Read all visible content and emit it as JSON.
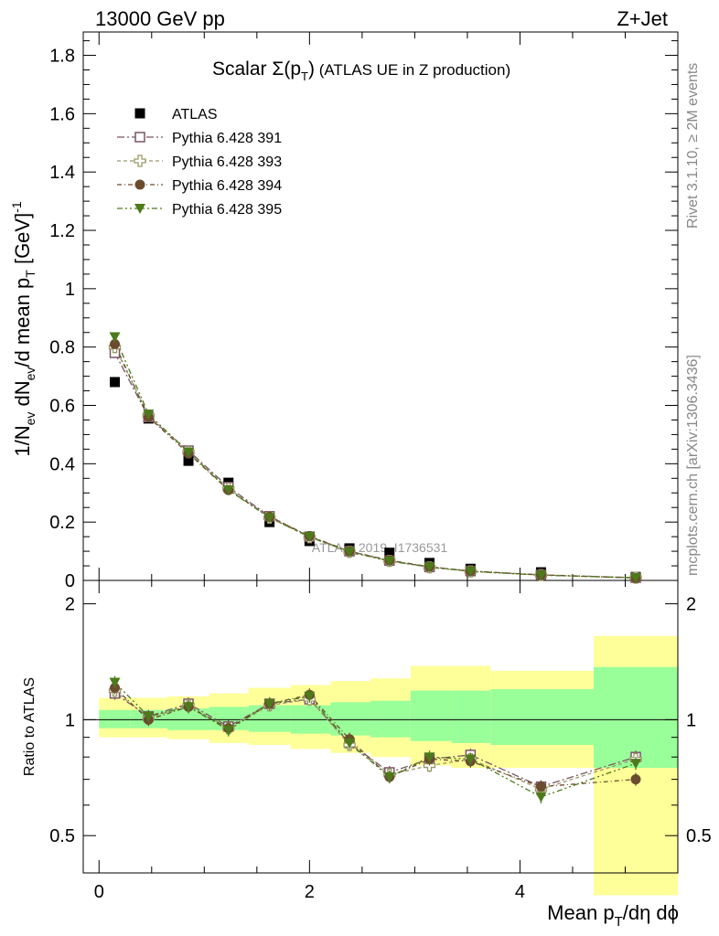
{
  "header": {
    "left": "13000 GeV pp",
    "right": "Z+Jet"
  },
  "side_labels": {
    "rivet": "Rivet 3.1.10, ≥ 2M events",
    "mcplots": "mcplots.cern.ch [arXiv:1306.3436]"
  },
  "watermark": "ATLAS_2019_I1736531",
  "chart_data": {
    "type": "scatter",
    "title": "Scalar Σ(p_T) (ATLAS UE in Z production)",
    "title_parts": {
      "main": "Scalar Σ(p",
      "sub": "T",
      "close": ")",
      "rest": " (ATLAS UE in Z production)"
    },
    "xlabel": "Mean p_T/dη dϕ",
    "xlabel_parts": {
      "pre": "Mean p",
      "sub": "T",
      "post": "/dη dϕ"
    },
    "ylabel": "1/N_ev dN_ev/d mean p_T [GeV]^-1",
    "ylabel_parts": {
      "a": "1/N",
      "a_sub": "ev",
      "b": " dN",
      "b_sub": "ev",
      "c": "/d mean p",
      "c_sub": "T",
      "d": " [GeV]",
      "d_sup": "-1"
    },
    "ratio_ylabel": "Ratio to ATLAS",
    "xlim": [
      -0.15,
      5.5
    ],
    "ylim": [
      0,
      1.88
    ],
    "ratio_ylim": [
      0.4,
      2.3
    ],
    "x_ticks": [
      "0",
      "2",
      "4"
    ],
    "y_ticks": [
      "0",
      "0.2",
      "0.4",
      "0.6",
      "0.8",
      "1",
      "1.2",
      "1.4",
      "1.6",
      "1.8"
    ],
    "ratio_y_ticks": [
      "0.5",
      "1",
      "2"
    ],
    "legend_position": "top-left",
    "x": [
      0.15,
      0.47,
      0.85,
      1.23,
      1.62,
      2.0,
      2.38,
      2.76,
      3.14,
      3.53,
      4.2,
      5.1
    ],
    "x_edges": [
      0.0,
      0.3,
      0.65,
      1.05,
      1.42,
      1.82,
      2.2,
      2.58,
      2.96,
      3.35,
      3.72,
      4.7,
      5.5
    ],
    "atlas": [
      0.68,
      0.555,
      0.41,
      0.335,
      0.2,
      0.135,
      0.11,
      0.095,
      0.06,
      0.04,
      0.028,
      0.012
    ],
    "band_inner": [
      [
        0.95,
        1.06
      ],
      [
        0.95,
        1.06
      ],
      [
        0.94,
        1.07
      ],
      [
        0.94,
        1.08
      ],
      [
        0.93,
        1.09
      ],
      [
        0.92,
        1.09
      ],
      [
        0.91,
        1.11
      ],
      [
        0.9,
        1.12
      ],
      [
        0.88,
        1.19
      ],
      [
        0.87,
        1.19
      ],
      [
        0.86,
        1.2
      ],
      [
        0.75,
        1.37
      ]
    ],
    "band_outer": [
      [
        0.9,
        1.14
      ],
      [
        0.9,
        1.14
      ],
      [
        0.89,
        1.15
      ],
      [
        0.87,
        1.17
      ],
      [
        0.86,
        1.21
      ],
      [
        0.84,
        1.23
      ],
      [
        0.82,
        1.26
      ],
      [
        0.8,
        1.28
      ],
      [
        0.76,
        1.38
      ],
      [
        0.75,
        1.38
      ],
      [
        0.75,
        1.34
      ],
      [
        0.35,
        1.65
      ]
    ],
    "series": [
      {
        "name": "Pythia 6.428 391",
        "color": "#7a5566",
        "marker": "open-square",
        "values": [
          0.78,
          0.56,
          0.445,
          0.32,
          0.22,
          0.15,
          0.1,
          0.068,
          0.046,
          0.032,
          0.019,
          0.0095
        ],
        "ratio": [
          1.17,
          1.02,
          1.1,
          0.96,
          1.1,
          1.13,
          0.87,
          0.73,
          0.79,
          0.81,
          0.67,
          0.8
        ]
      },
      {
        "name": "Pythia 6.428 393",
        "color": "#999966",
        "marker": "open-plus",
        "values": [
          0.8,
          0.565,
          0.44,
          0.315,
          0.215,
          0.148,
          0.098,
          0.067,
          0.045,
          0.031,
          0.0185,
          0.0093
        ],
        "ratio": [
          1.19,
          1.01,
          1.09,
          0.95,
          1.09,
          1.13,
          0.86,
          0.72,
          0.76,
          0.79,
          0.66,
          0.79
        ]
      },
      {
        "name": "Pythia 6.428 394",
        "color": "#6b4c2e",
        "marker": "filled-circle",
        "values": [
          0.81,
          0.56,
          0.435,
          0.31,
          0.218,
          0.152,
          0.1,
          0.069,
          0.047,
          0.032,
          0.019,
          0.0084
        ],
        "ratio": [
          1.21,
          1.0,
          1.08,
          0.95,
          1.1,
          1.16,
          0.89,
          0.71,
          0.79,
          0.78,
          0.67,
          0.7
        ]
      },
      {
        "name": "Pythia 6.428 395",
        "color": "#4d7a1a",
        "marker": "filled-triangle-down",
        "values": [
          0.835,
          0.57,
          0.44,
          0.31,
          0.215,
          0.15,
          0.098,
          0.066,
          0.046,
          0.031,
          0.018,
          0.009
        ],
        "ratio": [
          1.25,
          1.02,
          1.08,
          0.94,
          1.1,
          1.15,
          0.87,
          0.71,
          0.8,
          0.79,
          0.63,
          0.77
        ]
      }
    ]
  }
}
